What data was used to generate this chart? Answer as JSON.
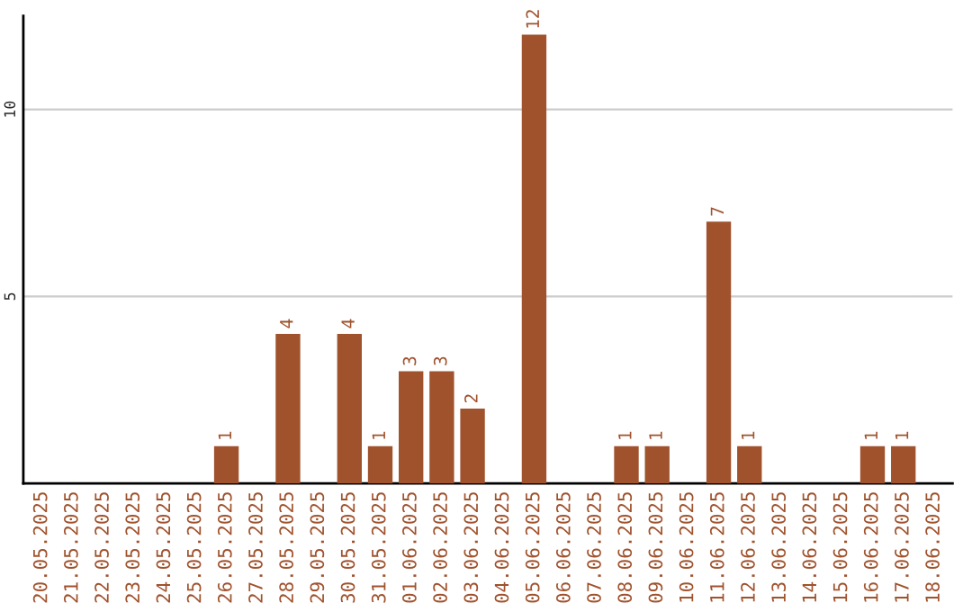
{
  "chart_data": {
    "type": "bar",
    "categories": [
      "20.05.2025",
      "21.05.2025",
      "22.05.2025",
      "23.05.2025",
      "24.05.2025",
      "25.05.2025",
      "26.05.2025",
      "27.05.2025",
      "28.05.2025",
      "29.05.2025",
      "30.05.2025",
      "31.05.2025",
      "01.06.2025",
      "02.06.2025",
      "03.06.2025",
      "04.06.2025",
      "05.06.2025",
      "06.06.2025",
      "07.06.2025",
      "08.06.2025",
      "09.06.2025",
      "10.06.2025",
      "11.06.2025",
      "12.06.2025",
      "13.06.2025",
      "14.06.2025",
      "15.06.2025",
      "16.06.2025",
      "17.06.2025",
      "18.06.2025"
    ],
    "values": [
      0,
      0,
      0,
      0,
      0,
      0,
      1,
      0,
      4,
      0,
      4,
      1,
      3,
      3,
      2,
      0,
      12,
      0,
      0,
      1,
      1,
      0,
      7,
      1,
      0,
      0,
      0,
      1,
      1,
      0
    ],
    "value_labels": [
      null,
      null,
      null,
      null,
      null,
      null,
      "1",
      null,
      "4",
      null,
      "4",
      "1",
      "3",
      "3",
      "2",
      null,
      "12",
      null,
      null,
      "1",
      "1",
      null,
      "7",
      "1",
      null,
      null,
      null,
      "1",
      "1",
      null
    ],
    "color": "#a0522d",
    "ylim": [
      0,
      12.5
    ],
    "yticks": [
      5,
      10
    ],
    "grid": "y",
    "legend": false
  }
}
